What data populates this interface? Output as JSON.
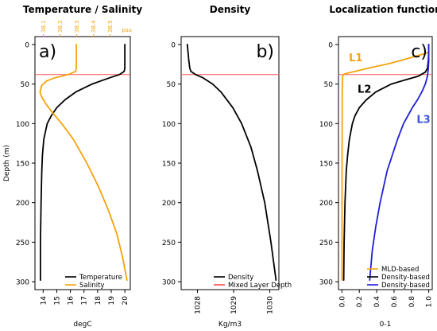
{
  "chart_data": [
    {
      "id": "a",
      "type": "line",
      "title": "Temperature / Salinity",
      "panel_letter": "a)",
      "xlabel": "degC",
      "ylabel": "Depth (m)",
      "xlim": [
        13.4,
        20.4
      ],
      "x_ticks": [
        14,
        15,
        16,
        17,
        18,
        19,
        20
      ],
      "ylim": [
        310,
        -10
      ],
      "y_ticks": [
        0,
        50,
        100,
        150,
        200,
        250,
        300
      ],
      "top_axis": {
        "label": "psu",
        "xlim": [
          38.05,
          38.62
        ],
        "ticks": [
          38.1,
          38.2,
          38.3,
          38.4,
          38.5
        ],
        "color": "#f5a30c"
      },
      "mixed_layer_depth": 38,
      "legend": {
        "position": "bottom-right"
      },
      "series": [
        {
          "name": "Temperature",
          "color": "#000000",
          "axis": "bottom",
          "y": [
            0,
            10,
            20,
            30,
            34,
            38,
            42,
            50,
            60,
            70,
            80,
            90,
            100,
            120,
            140,
            160,
            200,
            250,
            298
          ],
          "x": [
            20.0,
            20.0,
            20.0,
            20.0,
            19.95,
            19.6,
            18.9,
            17.6,
            16.4,
            15.6,
            15.0,
            14.6,
            14.3,
            14.05,
            13.95,
            13.9,
            13.85,
            13.8,
            13.8
          ]
        },
        {
          "name": "Salinity",
          "color": "#f5a30c",
          "axis": "top",
          "y": [
            0,
            10,
            20,
            30,
            34,
            38,
            42,
            46,
            52,
            60,
            66,
            75,
            85,
            100,
            120,
            150,
            180,
            210,
            240,
            270,
            298
          ],
          "x": [
            38.297,
            38.297,
            38.297,
            38.297,
            38.293,
            38.25,
            38.17,
            38.12,
            38.09,
            38.08,
            38.09,
            38.115,
            38.15,
            38.21,
            38.28,
            38.36,
            38.43,
            38.49,
            38.54,
            38.575,
            38.6
          ]
        }
      ]
    },
    {
      "id": "b",
      "type": "line",
      "title": "Density",
      "panel_letter": "b)",
      "xlabel": "Kg/m3",
      "xlim": [
        1027.55,
        1030.25
      ],
      "x_ticks": [
        1028,
        1029,
        1030
      ],
      "ylim": [
        310,
        -10
      ],
      "y_ticks": [
        0,
        50,
        100,
        150,
        200,
        250,
        300
      ],
      "mixed_layer_depth": 38,
      "legend": {
        "position": "bottom-right"
      },
      "series": [
        {
          "name": "Density",
          "color": "#000000",
          "y": [
            0,
            10,
            20,
            30,
            34,
            38,
            42,
            50,
            60,
            80,
            100,
            130,
            160,
            200,
            250,
            298
          ],
          "x": [
            1027.72,
            1027.74,
            1027.76,
            1027.79,
            1027.82,
            1027.95,
            1028.15,
            1028.42,
            1028.65,
            1028.98,
            1029.22,
            1029.48,
            1029.66,
            1029.86,
            1030.03,
            1030.17
          ]
        },
        {
          "name": "Mixed Layer Depth",
          "color": "#ff4d4d",
          "legend_only": true,
          "y": [],
          "x": []
        }
      ]
    },
    {
      "id": "c",
      "type": "line",
      "title": "Localization function",
      "panel_letter": "c)",
      "xlabel": "0-1",
      "xlim": [
        -0.04,
        1.04
      ],
      "x_ticks": [
        0.0,
        0.2,
        0.4,
        0.6,
        0.8,
        1.0
      ],
      "ylim": [
        310,
        -10
      ],
      "y_ticks": [
        0,
        50,
        100,
        150,
        200,
        250,
        300
      ],
      "mixed_layer_depth": 38,
      "legend": {
        "position": "bottom-right"
      },
      "annotations": [
        {
          "text": "L1",
          "x": 0.08,
          "y": 16,
          "color": "#f5a30c"
        },
        {
          "text": "L2",
          "x": 0.18,
          "y": 56,
          "color": "#000000"
        },
        {
          "text": "L3",
          "x": 0.86,
          "y": 94,
          "color": "#3a55e0"
        }
      ],
      "series": [
        {
          "name": "MLD-based",
          "color": "#f5a30c",
          "y": [
            10,
            18,
            24,
            30,
            34,
            36,
            37,
            38,
            39,
            41,
            45,
            60,
            100,
            200,
            298
          ],
          "x": [
            1.0,
            0.75,
            0.55,
            0.3,
            0.15,
            0.07,
            0.035,
            0.02,
            0.012,
            0.008,
            0.005,
            0.003,
            0.002,
            0.001,
            0.0
          ]
        },
        {
          "name": "Density-based",
          "color": "#000000",
          "y": [
            0,
            10,
            20,
            30,
            35,
            40,
            45,
            50,
            60,
            70,
            80,
            90,
            100,
            120,
            140,
            160,
            200,
            250,
            298
          ],
          "x": [
            1.0,
            1.0,
            0.995,
            0.985,
            0.96,
            0.88,
            0.72,
            0.57,
            0.39,
            0.28,
            0.2,
            0.15,
            0.12,
            0.085,
            0.065,
            0.05,
            0.035,
            0.025,
            0.02
          ]
        },
        {
          "name": "Density-based",
          "color": "#1f1fd6",
          "y": [
            0,
            10,
            20,
            30,
            40,
            50,
            60,
            70,
            80,
            90,
            100,
            120,
            140,
            160,
            180,
            200,
            230,
            260,
            298
          ],
          "x": [
            1.0,
            1.0,
            1.0,
            0.995,
            0.985,
            0.96,
            0.92,
            0.87,
            0.81,
            0.76,
            0.71,
            0.64,
            0.58,
            0.52,
            0.48,
            0.44,
            0.39,
            0.35,
            0.32
          ]
        }
      ]
    }
  ]
}
